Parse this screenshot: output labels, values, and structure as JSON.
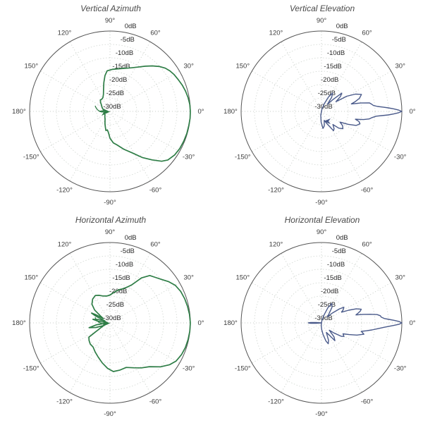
{
  "style": {
    "background": "#ffffff",
    "green": "#2e7d46",
    "blue": "#4a5a8a",
    "grid_ring": "#d5dad5",
    "grid_spoke": "#c7cdc7",
    "outer_circle": "#555555",
    "title_color": "#4a4a4a",
    "angle_label_color": "#3c3c3c",
    "radial_label_color": "#2a2a2a"
  },
  "chart_data": {
    "type": "line",
    "subtype": "polar-radiation-pattern",
    "layout": "2x2",
    "units": "dB",
    "grid": "on",
    "legend": "none",
    "r_axis": {
      "min": -30,
      "max": 0,
      "ring_step": 5,
      "labels": [
        "0dB",
        "-5dB",
        "-10dB",
        "-15dB",
        "-20dB",
        "-25dB",
        "-30dB"
      ],
      "label_values": [
        0,
        -5,
        -10,
        -15,
        -20,
        -25,
        -30
      ]
    },
    "theta_axis": {
      "labels": [
        "90°",
        "60°",
        "30°",
        "0°",
        "-30°",
        "-60°",
        "-90°",
        "-120°",
        "-150°",
        "180°",
        "150°",
        "120°"
      ],
      "values": [
        90,
        60,
        30,
        0,
        -30,
        -60,
        -90,
        -120,
        -150,
        180,
        150,
        120
      ]
    },
    "charts": [
      {
        "id": "vertical-azimuth",
        "title": "Vertical Azimuth",
        "color": "#2e7d46",
        "stroke_width": 1.7,
        "arrow": "double-chevron-right",
        "points": [
          [
            -180,
            -26.2
          ],
          [
            -176,
            -27.5
          ],
          [
            -170,
            -28
          ],
          [
            -160,
            -27.5
          ],
          [
            -148,
            -27.8
          ],
          [
            -135,
            -27.3
          ],
          [
            -122,
            -26.5
          ],
          [
            -112,
            -25
          ],
          [
            -106,
            -23.8
          ],
          [
            -102,
            -22.7
          ],
          [
            -98,
            -23
          ],
          [
            -94,
            -22
          ],
          [
            -90,
            -20
          ],
          [
            -84,
            -18.2
          ],
          [
            -78,
            -17.2
          ],
          [
            -70,
            -15
          ],
          [
            -62,
            -12.5
          ],
          [
            -55,
            -9
          ],
          [
            -49,
            -6
          ],
          [
            -44,
            -3.2
          ],
          [
            -40,
            -1.8
          ],
          [
            -34,
            -0.9
          ],
          [
            -28,
            -0.5
          ],
          [
            -22,
            -0.3
          ],
          [
            -16,
            -0.15
          ],
          [
            -10,
            -0.1
          ],
          [
            -5,
            0
          ],
          [
            0,
            0
          ],
          [
            5,
            -0.1
          ],
          [
            10,
            -0.4
          ],
          [
            15,
            -0.8
          ],
          [
            20,
            -1.3
          ],
          [
            25,
            -1.9
          ],
          [
            30,
            -2.4
          ],
          [
            34,
            -3
          ],
          [
            38,
            -3.8
          ],
          [
            42,
            -5
          ],
          [
            47,
            -6.8
          ],
          [
            52,
            -8.6
          ],
          [
            58,
            -10.5
          ],
          [
            64,
            -11.9
          ],
          [
            71,
            -13
          ],
          [
            79,
            -13.8
          ],
          [
            87,
            -14.3
          ],
          [
            94,
            -14.8
          ],
          [
            98,
            -16.5
          ],
          [
            102,
            -19
          ],
          [
            106,
            -21.3
          ],
          [
            111,
            -23.2
          ],
          [
            117,
            -24.2
          ],
          [
            124,
            -24.5
          ],
          [
            130,
            -24.4
          ],
          [
            136,
            -25.1
          ],
          [
            143,
            -26
          ],
          [
            152,
            -26.6
          ],
          [
            162,
            -27.2
          ],
          [
            171,
            -27.8
          ],
          [
            176,
            -27.3
          ],
          [
            180,
            -26.2
          ]
        ]
      },
      {
        "id": "vertical-elevation",
        "title": "Vertical Elevation",
        "color": "#4a5a8a",
        "stroke_width": 1.4,
        "arrow": "small-chevron-left",
        "points": [
          [
            -180,
            -30
          ],
          [
            -150,
            -30
          ],
          [
            -120,
            -30
          ],
          [
            -110,
            -30
          ],
          [
            -100,
            -28.5
          ],
          [
            -92,
            -26
          ],
          [
            -85,
            -23.6
          ],
          [
            -79,
            -24.5
          ],
          [
            -73,
            -26.5
          ],
          [
            -66,
            -25
          ],
          [
            -58,
            -21.5
          ],
          [
            -54,
            -22
          ],
          [
            -49,
            -23.5
          ],
          [
            -44,
            -21
          ],
          [
            -39,
            -19.7
          ],
          [
            -34,
            -20.5
          ],
          [
            -30,
            -22
          ],
          [
            -26,
            -19
          ],
          [
            -22,
            -16
          ],
          [
            -18,
            -14.9
          ],
          [
            -15,
            -15.5
          ],
          [
            -13,
            -17
          ],
          [
            -11,
            -14
          ],
          [
            -9,
            -12
          ],
          [
            -7,
            -11
          ],
          [
            -5,
            -9.5
          ],
          [
            -4,
            -7.5
          ],
          [
            -3,
            -5
          ],
          [
            -2,
            -3
          ],
          [
            -1,
            -1.2
          ],
          [
            0,
            0
          ],
          [
            1,
            -1.2
          ],
          [
            2,
            -3
          ],
          [
            3,
            -5
          ],
          [
            4,
            -7
          ],
          [
            5,
            -9
          ],
          [
            6.5,
            -10.5
          ],
          [
            8,
            -11
          ],
          [
            10,
            -11.8
          ],
          [
            12,
            -15
          ],
          [
            14,
            -18.5
          ],
          [
            16,
            -17
          ],
          [
            19,
            -15
          ],
          [
            23,
            -13.8
          ],
          [
            27,
            -15.8
          ],
          [
            31,
            -19
          ],
          [
            34,
            -23.5
          ],
          [
            38,
            -21
          ],
          [
            42,
            -19.8
          ],
          [
            46,
            -24
          ],
          [
            50,
            -26.5
          ],
          [
            54,
            -23.5
          ],
          [
            59,
            -22
          ],
          [
            64,
            -24
          ],
          [
            70,
            -27
          ],
          [
            78,
            -29
          ],
          [
            90,
            -30
          ],
          [
            120,
            -30
          ],
          [
            150,
            -30
          ],
          [
            180,
            -30
          ]
        ]
      },
      {
        "id": "horizontal-azimuth",
        "title": "Horizontal Azimuth",
        "color": "#2e7d46",
        "stroke_width": 1.7,
        "arrow": "double-chevron-right",
        "points": [
          [
            -180,
            -29
          ],
          [
            -176,
            -28.5
          ],
          [
            -172,
            -25
          ],
          [
            -167,
            -22
          ],
          [
            -162,
            -24.5
          ],
          [
            -157,
            -27.5
          ],
          [
            -153,
            -26.5
          ],
          [
            -146,
            -20.5
          ],
          [
            -140,
            -19.8
          ],
          [
            -133,
            -19.2
          ],
          [
            -125,
            -19
          ],
          [
            -117,
            -17.8
          ],
          [
            -109,
            -16.5
          ],
          [
            -101,
            -14.8
          ],
          [
            -93,
            -13
          ],
          [
            -86,
            -11.8
          ],
          [
            -78,
            -12
          ],
          [
            -70,
            -12.3
          ],
          [
            -62,
            -11
          ],
          [
            -55,
            -9.5
          ],
          [
            -48,
            -8
          ],
          [
            -41,
            -5
          ],
          [
            -35,
            -2.8
          ],
          [
            -30,
            -1.5
          ],
          [
            -24,
            -0.8
          ],
          [
            -18,
            -0.4
          ],
          [
            -12,
            -0.2
          ],
          [
            -6,
            -0.05
          ],
          [
            0,
            0
          ],
          [
            6,
            -0.15
          ],
          [
            12,
            -0.4
          ],
          [
            18,
            -0.7
          ],
          [
            24,
            -1.1
          ],
          [
            30,
            -1.9
          ],
          [
            35,
            -3.2
          ],
          [
            40,
            -4.8
          ],
          [
            45,
            -6
          ],
          [
            50,
            -6.9
          ],
          [
            55,
            -9.5
          ],
          [
            60,
            -13.5
          ],
          [
            65,
            -15.4
          ],
          [
            70,
            -16.5
          ],
          [
            75,
            -17.2
          ],
          [
            80,
            -18.1
          ],
          [
            85,
            -18.9
          ],
          [
            90,
            -19.6
          ],
          [
            97,
            -19.9
          ],
          [
            105,
            -19.6
          ],
          [
            112,
            -18.9
          ],
          [
            118,
            -18.4
          ],
          [
            126,
            -19
          ],
          [
            134,
            -20.3
          ],
          [
            140,
            -22.5
          ],
          [
            144,
            -25.5
          ],
          [
            147,
            -27
          ],
          [
            150,
            -23.8
          ],
          [
            152,
            -22.2
          ],
          [
            154,
            -23.8
          ],
          [
            157,
            -27
          ],
          [
            160,
            -28
          ],
          [
            164,
            -25.5
          ],
          [
            168,
            -23.5
          ],
          [
            172,
            -25.5
          ],
          [
            176,
            -28.5
          ],
          [
            180,
            -29
          ]
        ]
      },
      {
        "id": "horizontal-elevation",
        "title": "Horizontal Elevation",
        "color": "#4a5a8a",
        "stroke_width": 1.4,
        "arrow": "none",
        "points": [
          [
            -180,
            -25.1
          ],
          [
            -178,
            -26
          ],
          [
            -176,
            -28
          ],
          [
            -172,
            -30
          ],
          [
            -150,
            -30
          ],
          [
            -120,
            -30
          ],
          [
            -105,
            -30
          ],
          [
            -96,
            -29
          ],
          [
            -88,
            -27.5
          ],
          [
            -82,
            -25.5
          ],
          [
            -76,
            -23
          ],
          [
            -72,
            -21.8
          ],
          [
            -68,
            -23
          ],
          [
            -63,
            -26
          ],
          [
            -58,
            -24.8
          ],
          [
            -53,
            -21.7
          ],
          [
            -48,
            -23
          ],
          [
            -43,
            -26
          ],
          [
            -39,
            -24
          ],
          [
            -34,
            -21
          ],
          [
            -31,
            -20.2
          ],
          [
            -27,
            -21
          ],
          [
            -23,
            -18.8
          ],
          [
            -19,
            -16
          ],
          [
            -15,
            -13.6
          ],
          [
            -12,
            -14.8
          ],
          [
            -10,
            -13
          ],
          [
            -8,
            -11
          ],
          [
            -6,
            -9
          ],
          [
            -4,
            -6.5
          ],
          [
            -2,
            -3
          ],
          [
            -1,
            -1
          ],
          [
            0,
            0
          ],
          [
            1,
            -1
          ],
          [
            2,
            -2.8
          ],
          [
            3,
            -4.8
          ],
          [
            4,
            -6.5
          ],
          [
            5.5,
            -7.6
          ],
          [
            7,
            -7.9
          ],
          [
            8.5,
            -9
          ],
          [
            10,
            -11.5
          ],
          [
            11.5,
            -14
          ],
          [
            13,
            -16.8
          ],
          [
            15,
            -15.8
          ],
          [
            17,
            -14.8
          ],
          [
            19,
            -14.3
          ],
          [
            22,
            -16
          ],
          [
            25,
            -18.8
          ],
          [
            28,
            -21.5
          ],
          [
            31,
            -20.6
          ],
          [
            35,
            -19.8
          ],
          [
            38,
            -21.5
          ],
          [
            42,
            -24.5
          ],
          [
            46,
            -26.8
          ],
          [
            50,
            -25.8
          ],
          [
            56,
            -23
          ],
          [
            62,
            -21.8
          ],
          [
            67,
            -23.8
          ],
          [
            72,
            -26.8
          ],
          [
            79,
            -29
          ],
          [
            88,
            -30
          ],
          [
            110,
            -30
          ],
          [
            140,
            -30
          ],
          [
            170,
            -30
          ],
          [
            176,
            -28
          ],
          [
            178,
            -26
          ],
          [
            180,
            -25.1
          ]
        ]
      }
    ]
  }
}
